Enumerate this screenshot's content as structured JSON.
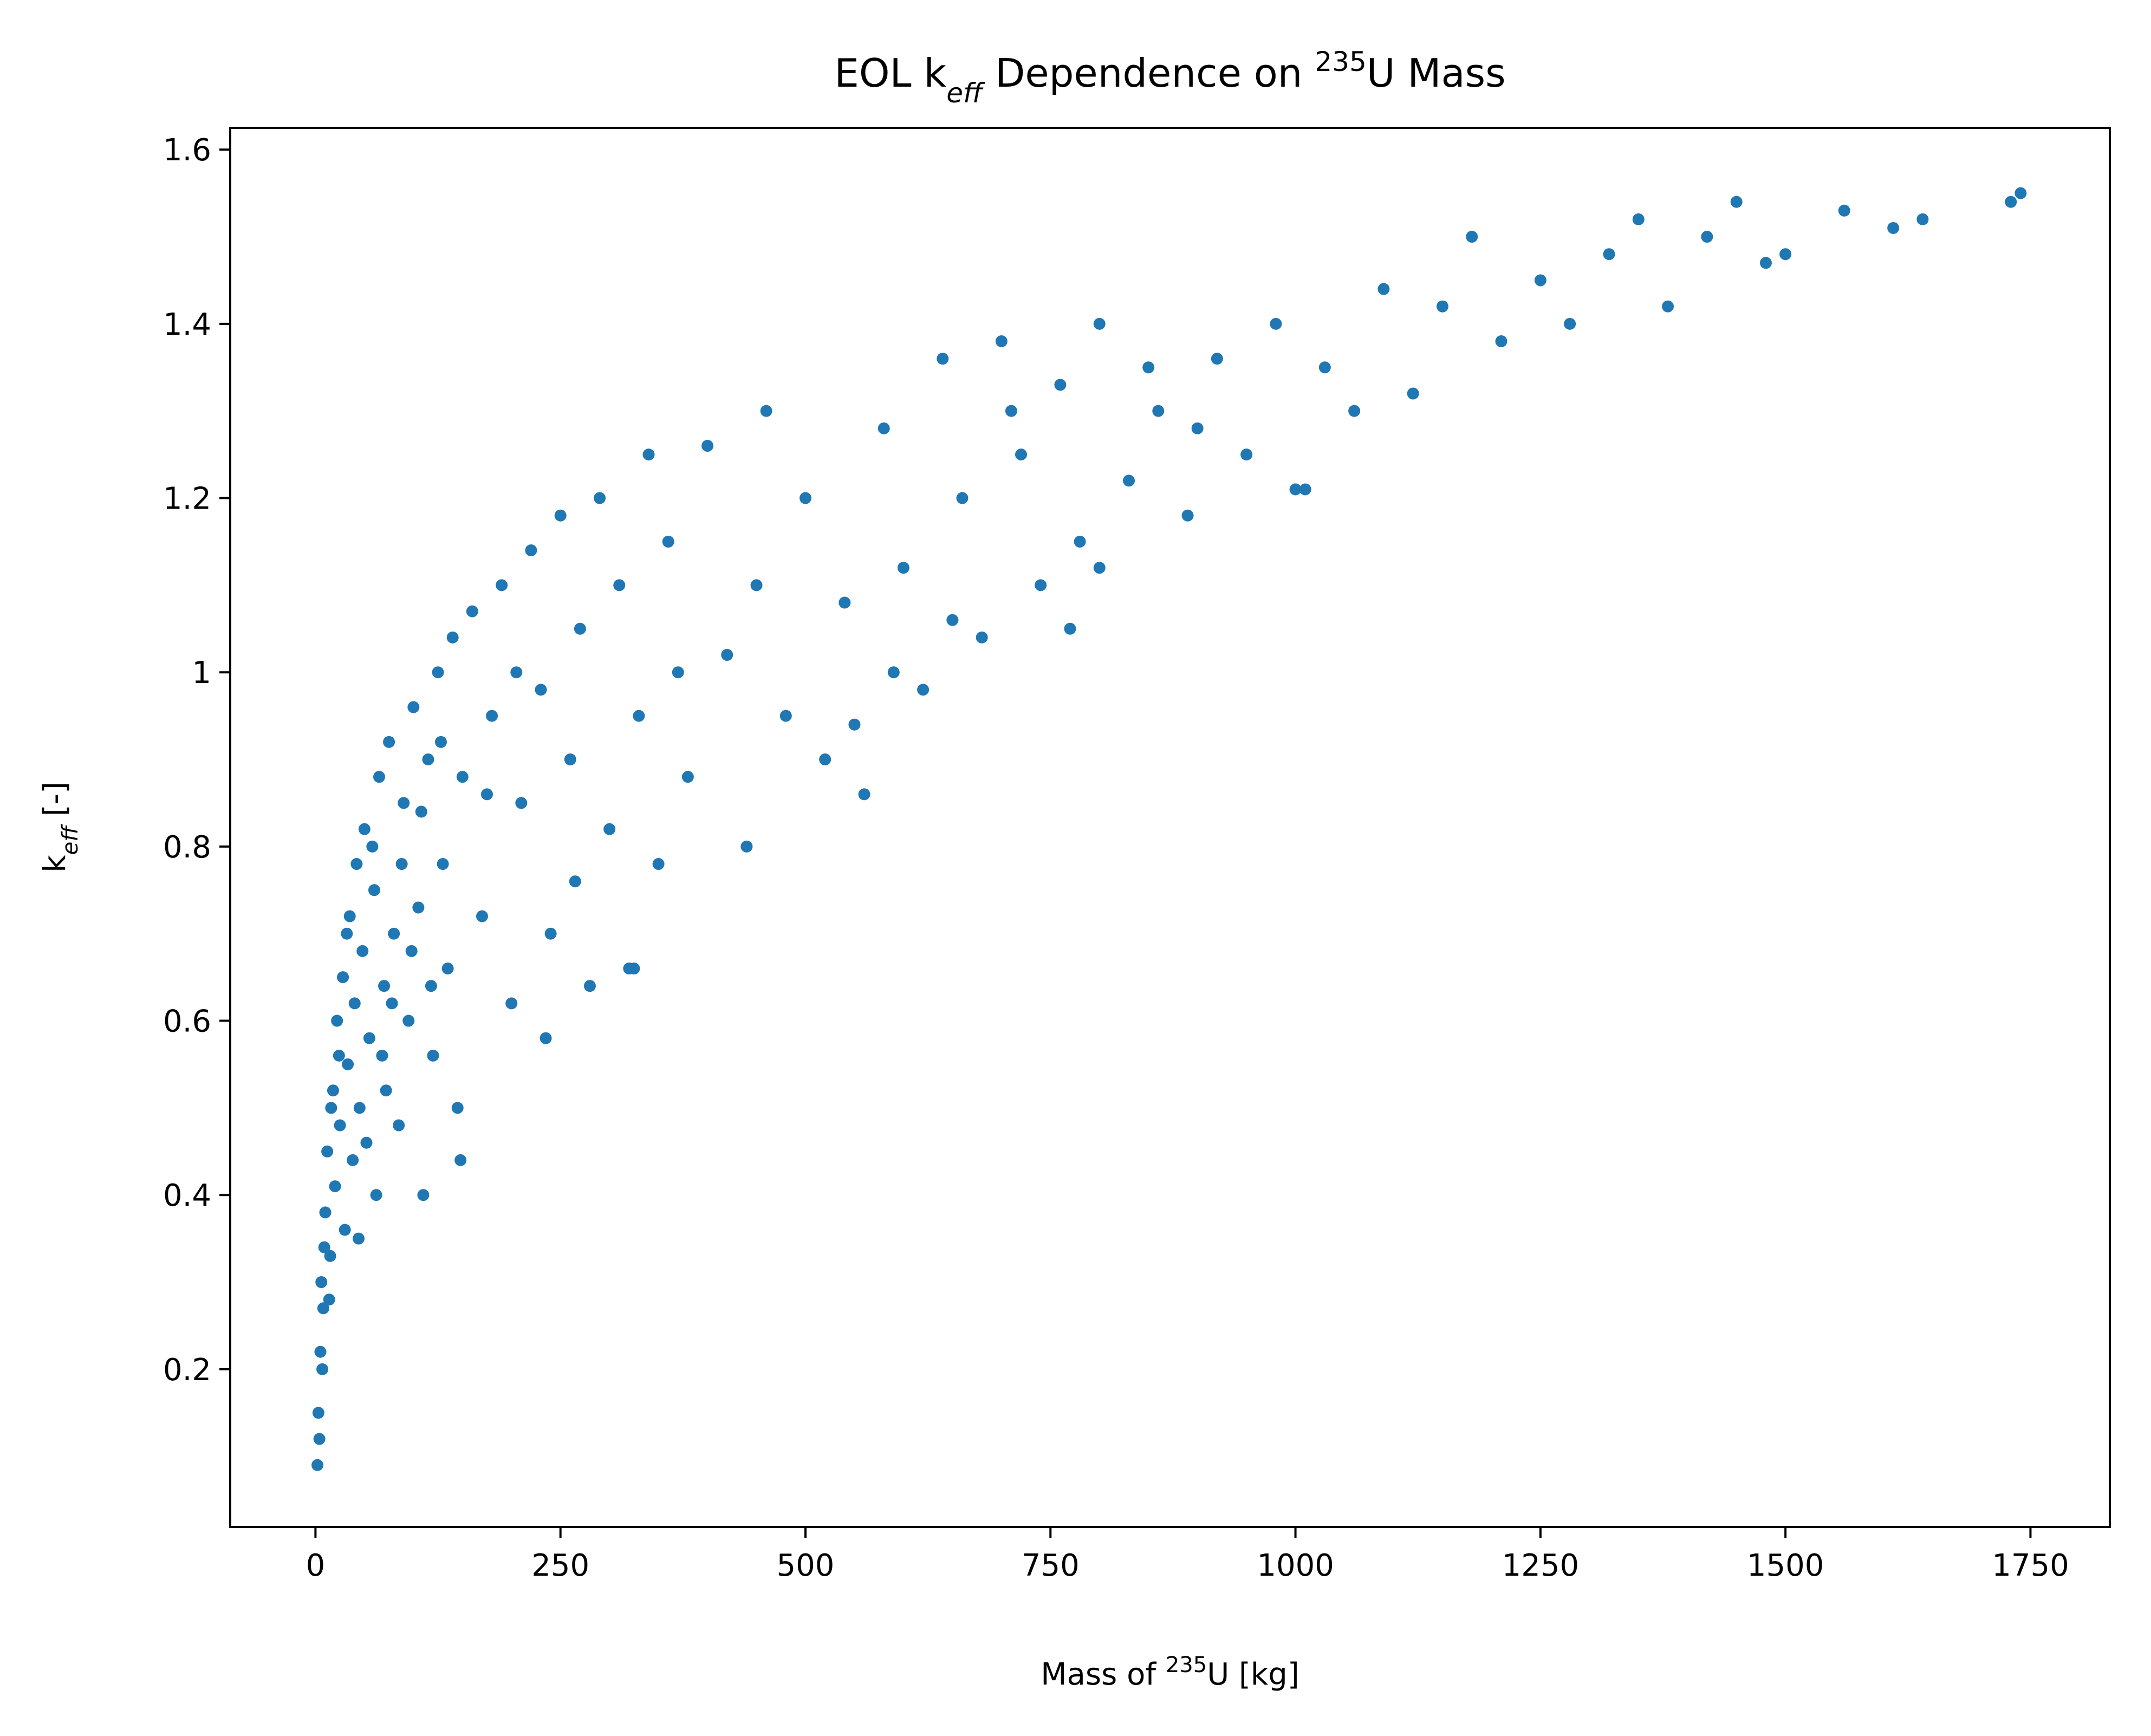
{
  "chart_data": {
    "type": "scatter",
    "title": [
      "EOL k",
      "eff",
      " Dependence on ",
      "235",
      "U Mass"
    ],
    "x_label": [
      "Mass of ",
      "235",
      "U [kg]"
    ],
    "y_label": [
      "k",
      "eff",
      " [-]"
    ],
    "color": "#1f77b4",
    "x": [
      2,
      3,
      5,
      6,
      8,
      10,
      12,
      15,
      18,
      20,
      22,
      25,
      28,
      30,
      33,
      35,
      38,
      40,
      42,
      45,
      48,
      50,
      55,
      60,
      62,
      65,
      70,
      72,
      75,
      80,
      85,
      90,
      95,
      100,
      105,
      110,
      115,
      120,
      125,
      130,
      135,
      140,
      145,
      150,
      160,
      170,
      180,
      190,
      200,
      210,
      220,
      230,
      240,
      250,
      260,
      270,
      280,
      290,
      300,
      310,
      320,
      330,
      340,
      350,
      360,
      380,
      400,
      420,
      440,
      460,
      480,
      500,
      520,
      540,
      560,
      580,
      600,
      620,
      640,
      660,
      680,
      700,
      720,
      740,
      760,
      780,
      800,
      830,
      860,
      890,
      920,
      950,
      980,
      1000,
      1030,
      1060,
      1090,
      1120,
      1150,
      1180,
      1210,
      1250,
      1280,
      1320,
      1350,
      1380,
      1420,
      1450,
      1480,
      1500,
      1560,
      1610,
      1640,
      1730,
      1740,
      4,
      7,
      9,
      14,
      16,
      24,
      32,
      44,
      52,
      58,
      68,
      78,
      88,
      98,
      108,
      118,
      128,
      148,
      175,
      205,
      235,
      265,
      325,
      370,
      450,
      550,
      590,
      650,
      710,
      770,
      800,
      850,
      900,
      1010
    ],
    "y": [
      0.09,
      0.15,
      0.22,
      0.3,
      0.27,
      0.38,
      0.45,
      0.33,
      0.52,
      0.41,
      0.6,
      0.48,
      0.65,
      0.36,
      0.55,
      0.72,
      0.44,
      0.62,
      0.78,
      0.5,
      0.68,
      0.82,
      0.58,
      0.75,
      0.4,
      0.88,
      0.64,
      0.52,
      0.92,
      0.7,
      0.48,
      0.85,
      0.6,
      0.96,
      0.73,
      0.4,
      0.9,
      0.56,
      1.0,
      0.78,
      0.66,
      1.04,
      0.5,
      0.88,
      1.07,
      0.72,
      0.95,
      1.1,
      0.62,
      0.85,
      1.14,
      0.98,
      0.7,
      1.18,
      0.9,
      1.05,
      0.64,
      1.2,
      0.82,
      1.1,
      0.66,
      0.95,
      1.25,
      0.78,
      1.15,
      0.88,
      1.26,
      1.02,
      0.8,
      1.3,
      0.95,
      1.2,
      0.9,
      1.08,
      0.86,
      1.28,
      1.12,
      0.98,
      1.36,
      1.2,
      1.04,
      1.38,
      1.25,
      1.1,
      1.33,
      1.15,
      1.4,
      1.22,
      1.3,
      1.18,
      1.36,
      1.25,
      1.4,
      1.21,
      1.35,
      1.3,
      1.44,
      1.32,
      1.42,
      1.5,
      1.38,
      1.45,
      1.4,
      1.48,
      1.52,
      1.42,
      1.5,
      1.54,
      1.47,
      1.48,
      1.53,
      1.51,
      1.52,
      1.54,
      1.55,
      0.12,
      0.2,
      0.34,
      0.28,
      0.5,
      0.56,
      0.7,
      0.35,
      0.46,
      0.8,
      0.56,
      0.62,
      0.78,
      0.68,
      0.84,
      0.64,
      0.92,
      0.44,
      0.86,
      1.0,
      0.58,
      0.76,
      0.66,
      1.0,
      1.1,
      0.94,
      1.0,
      1.06,
      1.3,
      1.05,
      1.12,
      1.35,
      1.28,
      1.21
    ],
    "xlim": [
      -87,
      1831
    ],
    "ylim": [
      0.019,
      1.625
    ],
    "xticks": [
      0,
      250,
      500,
      750,
      1000,
      1250,
      1500,
      1750
    ],
    "yticks": [
      0.2,
      0.4,
      0.6,
      0.8,
      1.0,
      1.2,
      1.4,
      1.6
    ]
  }
}
